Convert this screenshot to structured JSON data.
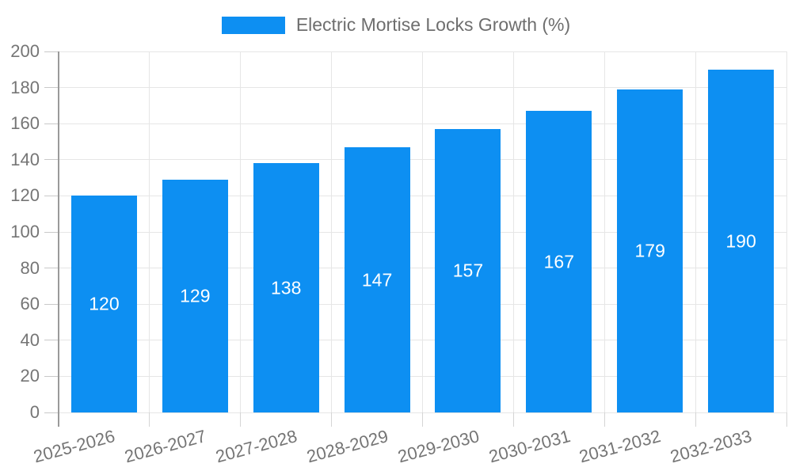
{
  "chart_data": {
    "type": "bar",
    "title": "",
    "legend": "Electric Mortise Locks Growth (%)",
    "legend_position": "top",
    "categories": [
      "2025-2026",
      "2026-2027",
      "2027-2028",
      "2028-2029",
      "2029-2030",
      "2030-2031",
      "2031-2032",
      "2032-2033"
    ],
    "values": [
      120,
      129,
      138,
      147,
      157,
      167,
      179,
      190
    ],
    "xlabel": "",
    "ylabel": "",
    "ylim": [
      0,
      200
    ],
    "yticks": [
      0,
      20,
      40,
      60,
      80,
      100,
      120,
      140,
      160,
      180,
      200
    ],
    "grid": true,
    "colors": {
      "bar": "#0d8ff2",
      "bar_value_text": "#ffffff",
      "axis_text": "#757575",
      "legend_text": "#6e6e6e",
      "gridline": "#e6e6e6",
      "axis_line": "#9a9a9a"
    }
  }
}
